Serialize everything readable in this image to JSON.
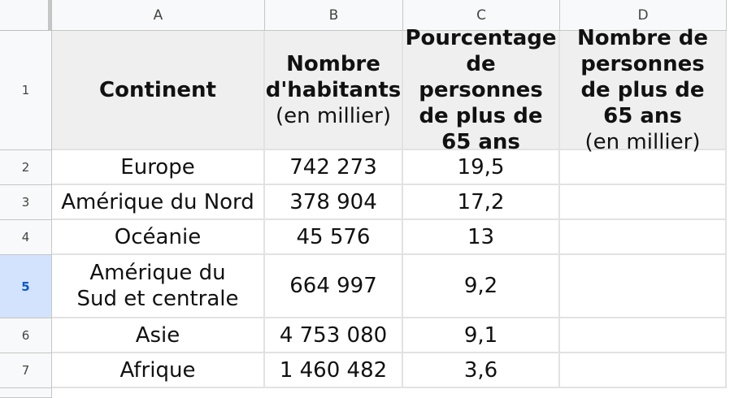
{
  "columns": [
    "A",
    "B",
    "C",
    "D"
  ],
  "rows": [
    "1",
    "2",
    "3",
    "4",
    "5",
    "6",
    "7"
  ],
  "selected_row": "5",
  "header": {
    "continent": "Continent",
    "habitants_bold": "Nombre d'habitants",
    "habitants_unit": "(en millier)",
    "pourcentage_bold": "Pourcentage de personnes de plus de 65 ans",
    "nombre65_bold": "Nombre de personnes de plus de 65 ans",
    "nombre65_unit": "(en millier)"
  },
  "data_rows": [
    {
      "continent": "Europe",
      "habitants": "742 273",
      "pourcentage": "19,5",
      "nombre65": ""
    },
    {
      "continent": "Amérique du Nord",
      "habitants": "378 904",
      "pourcentage": "17,2",
      "nombre65": ""
    },
    {
      "continent": "Océanie",
      "habitants": "45 576",
      "pourcentage": "13",
      "nombre65": ""
    },
    {
      "continent": "Amérique du Sud et centrale",
      "habitants": "664 997",
      "pourcentage": "9,2",
      "nombre65": ""
    },
    {
      "continent": "Asie",
      "habitants": "4 753 080",
      "pourcentage": "9,1",
      "nombre65": ""
    },
    {
      "continent": "Afrique",
      "habitants": "1 460 482",
      "pourcentage": "3,6",
      "nombre65": ""
    }
  ]
}
